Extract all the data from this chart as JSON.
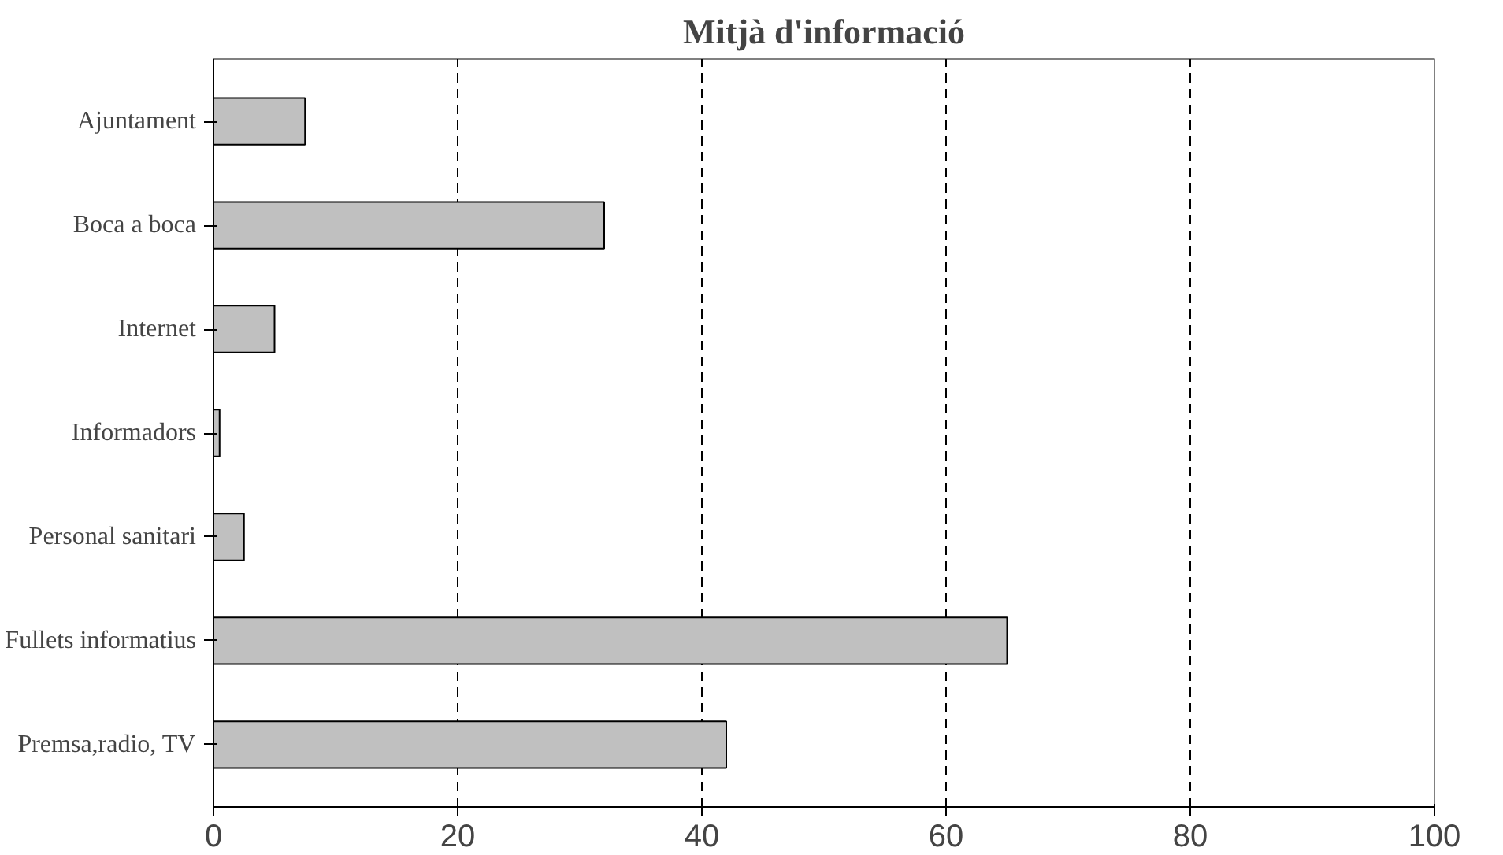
{
  "chart_data": {
    "type": "bar",
    "orientation": "horizontal",
    "title": "Mitjà d'informació",
    "categories": [
      "Ajuntament",
      "Boca a boca",
      "Internet",
      "Informadors",
      "Personal sanitari",
      "Fullets informatius",
      "Premsa,radio, TV"
    ],
    "values": [
      7.5,
      32,
      5,
      0.5,
      2.5,
      65,
      42
    ],
    "color": "#c0c0c0",
    "xlim": [
      0,
      100
    ],
    "xticks": [
      0,
      20,
      40,
      60,
      80,
      100
    ],
    "grid": "x",
    "line_style": "dashed"
  }
}
